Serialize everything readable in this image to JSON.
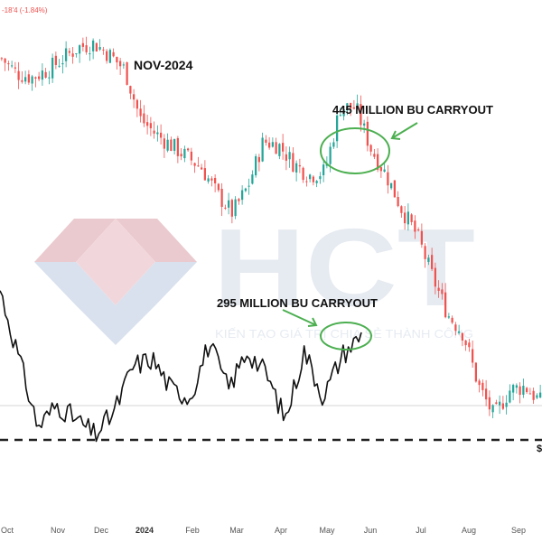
{
  "header": {
    "change_text": "-18'4 (-1.84%)"
  },
  "watermark": {
    "brand": "HCT",
    "slogan": "KIẾN TẠO GIÁ TRỊ CHIA SẺ THÀNH CÔNG"
  },
  "chart_data": {
    "type": "line",
    "x_axis_labels": [
      "Oct",
      "Nov",
      "Dec",
      "2024",
      "Feb",
      "Mar",
      "Apr",
      "May",
      "Jun",
      "Jul",
      "Aug",
      "Sep"
    ],
    "annotations": {
      "top_label": "NOV-2024",
      "upper_label": "445 MILLION BU CARRYOUT",
      "lower_label": "295 MILLION BU CARRYOUT",
      "right_edge_label": "$"
    },
    "grid": false,
    "colors": {
      "up": "#26a69a",
      "down": "#ef5350",
      "comparison_line": "#111111",
      "circle": "#4caf50",
      "arrow": "#4caf50",
      "support_line": "#222222"
    },
    "series": [
      {
        "style": "candlestick",
        "approx_closes": [
          100,
          96,
          95,
          97,
          100,
          103,
          104,
          101,
          97,
          84,
          80,
          77,
          74,
          71,
          64,
          59,
          66,
          78,
          77,
          72,
          69,
          70,
          87,
          87,
          76,
          69,
          60,
          53,
          42,
          32,
          27,
          13,
          5,
          12,
          13,
          9
        ]
      },
      {
        "style": "line",
        "approx_values": [
          40,
          22,
          4,
          10,
          6,
          2,
          8,
          20,
          22,
          14,
          12,
          26,
          14,
          24,
          18,
          6,
          24,
          12,
          23,
          28
        ]
      }
    ]
  }
}
